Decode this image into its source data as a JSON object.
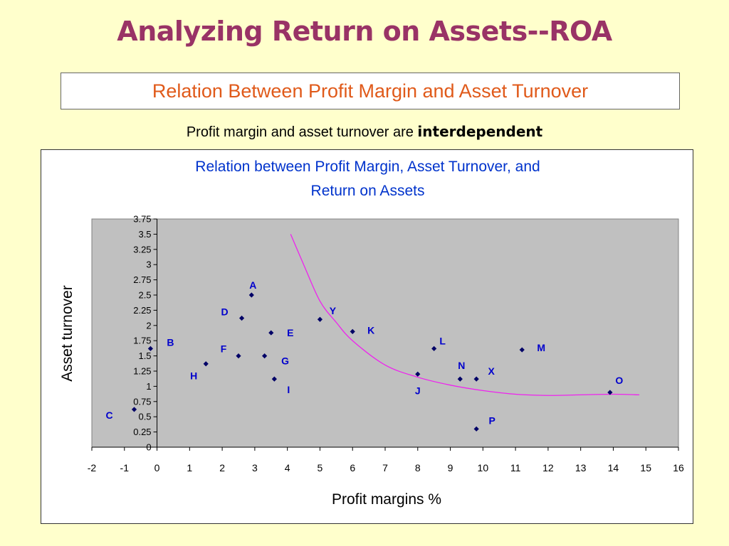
{
  "slide": {
    "title": "Analyzing Return on Assets--ROA",
    "subtitle": "Relation Between Profit Margin and Asset Turnover",
    "caption_prefix": "Profit margin and asset turnover are ",
    "caption_emphasis": "interdependent"
  },
  "colors": {
    "title": "#993366",
    "subtitle": "#e05a1a",
    "chart_title": "#0033cc",
    "point_label": "#0000cc",
    "point": "#000066",
    "curve": "#ee22ee",
    "plot_area": "#c0c0c0"
  },
  "chart_data": {
    "type": "scatter",
    "title_lines": [
      "Relation between Profit Margin, Asset Turnover, and",
      "Return on Assets"
    ],
    "xlabel": "Profit margins %",
    "ylabel": "Asset turnover",
    "xlim": [
      -2,
      16
    ],
    "ylim": [
      0,
      3.75
    ],
    "x_ticks": [
      "-2",
      "-1",
      "0",
      "1",
      "2",
      "3",
      "4",
      "5",
      "6",
      "7",
      "8",
      "9",
      "10",
      "11",
      "12",
      "13",
      "14",
      "15",
      "16"
    ],
    "y_ticks": [
      "0",
      "0.25",
      "0.5",
      "0.75",
      "1",
      "1.25",
      "1.5",
      "1.75",
      "2",
      "2.25",
      "2.5",
      "2.75",
      "3",
      "3.25",
      "3.5",
      "3.75"
    ],
    "grid": false,
    "points": [
      {
        "label": "A",
        "x": 2.9,
        "y": 2.5
      },
      {
        "label": "B",
        "x": -0.2,
        "y": 1.62
      },
      {
        "label": "C",
        "x": -0.7,
        "y": 0.62
      },
      {
        "label": "D",
        "x": 2.6,
        "y": 2.12
      },
      {
        "label": "E",
        "x": 3.5,
        "y": 1.88
      },
      {
        "label": "F",
        "x": 2.5,
        "y": 1.5
      },
      {
        "label": "G",
        "x": 3.3,
        "y": 1.5
      },
      {
        "label": "H",
        "x": 1.5,
        "y": 1.37
      },
      {
        "label": "I",
        "x": 3.6,
        "y": 1.12
      },
      {
        "label": "J",
        "x": 8.0,
        "y": 1.2
      },
      {
        "label": "K",
        "x": 6.0,
        "y": 1.9
      },
      {
        "label": "L",
        "x": 8.5,
        "y": 1.62
      },
      {
        "label": "M",
        "x": 11.2,
        "y": 1.6
      },
      {
        "label": "N",
        "x": 9.3,
        "y": 1.12
      },
      {
        "label": "O",
        "x": 13.9,
        "y": 0.9
      },
      {
        "label": "P",
        "x": 9.8,
        "y": 0.3
      },
      {
        "label": "X",
        "x": 9.8,
        "y": 1.12
      },
      {
        "label": "Y",
        "x": 5.0,
        "y": 2.1
      }
    ],
    "curve": [
      {
        "x": 4.1,
        "y": 3.5
      },
      {
        "x": 4.5,
        "y": 3.0
      },
      {
        "x": 5.0,
        "y": 2.4
      },
      {
        "x": 5.5,
        "y": 2.05
      },
      {
        "x": 6.0,
        "y": 1.75
      },
      {
        "x": 7.0,
        "y": 1.35
      },
      {
        "x": 8.0,
        "y": 1.15
      },
      {
        "x": 9.0,
        "y": 1.02
      },
      {
        "x": 10.0,
        "y": 0.93
      },
      {
        "x": 11.0,
        "y": 0.87
      },
      {
        "x": 12.0,
        "y": 0.85
      },
      {
        "x": 13.0,
        "y": 0.86
      },
      {
        "x": 14.0,
        "y": 0.87
      },
      {
        "x": 14.8,
        "y": 0.86
      }
    ]
  }
}
